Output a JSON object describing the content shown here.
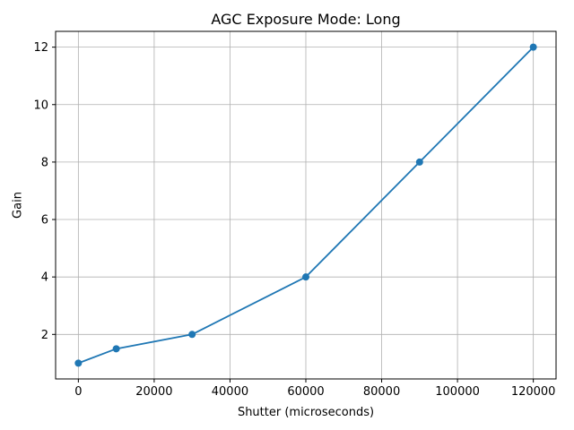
{
  "chart_data": {
    "type": "line",
    "title": "AGC Exposure Mode: Long",
    "xlabel": "Shutter (microseconds)",
    "ylabel": "Gain",
    "x": [
      0,
      10000,
      30000,
      60000,
      90000,
      120000
    ],
    "y": [
      1,
      1.5,
      2,
      4,
      8,
      12
    ],
    "xticks": [
      0,
      20000,
      40000,
      60000,
      80000,
      100000,
      120000
    ],
    "yticks": [
      2,
      4,
      6,
      8,
      10,
      12
    ],
    "xlim": [
      -6000,
      126000
    ],
    "ylim": [
      0.45,
      12.55
    ],
    "grid": true,
    "legend": "none",
    "line_color": "#1f77b4",
    "marker": "o",
    "grid_color": "#b0b0b0",
    "spine_color": "#000000",
    "background_color": "#ffffff"
  }
}
